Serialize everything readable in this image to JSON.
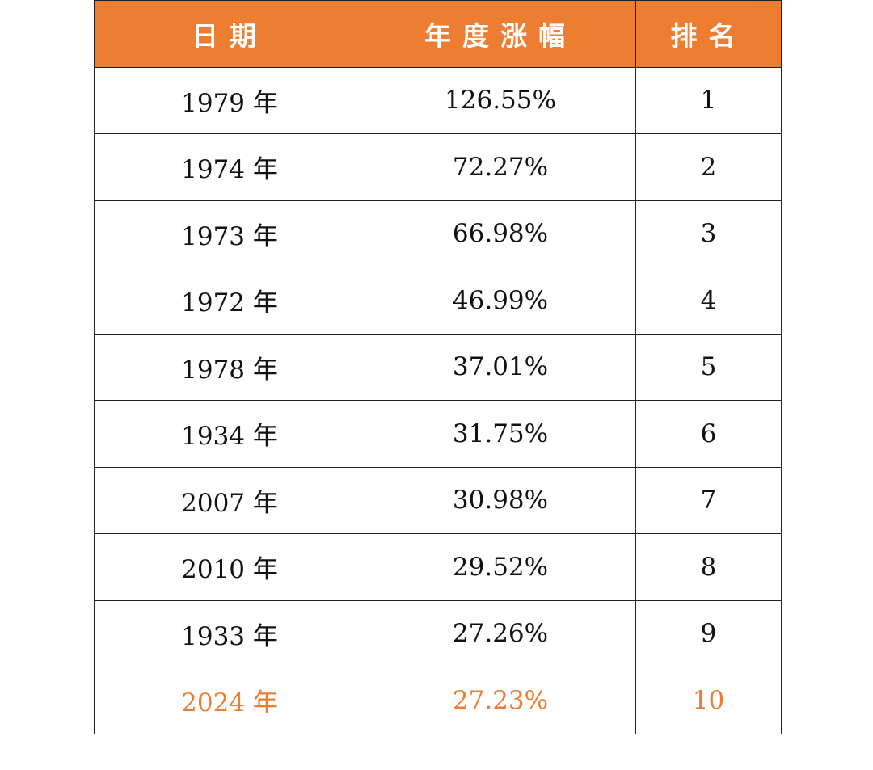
{
  "accent_color": "#ED7D31",
  "headers": [
    "日期",
    "年度涨幅",
    "排名"
  ],
  "rows": [
    {
      "date": "1979 年",
      "gain": "126.55%",
      "rank": "1"
    },
    {
      "date": "1974 年",
      "gain": "72.27%",
      "rank": "2"
    },
    {
      "date": "1973 年",
      "gain": "66.98%",
      "rank": "3"
    },
    {
      "date": "1972 年",
      "gain": "46.99%",
      "rank": "4"
    },
    {
      "date": "1978 年",
      "gain": "37.01%",
      "rank": "5"
    },
    {
      "date": "1934 年",
      "gain": "31.75%",
      "rank": "6"
    },
    {
      "date": "2007 年",
      "gain": "30.98%",
      "rank": "7"
    },
    {
      "date": "2010 年",
      "gain": "29.52%",
      "rank": "8"
    },
    {
      "date": "1933 年",
      "gain": "27.26%",
      "rank": "9"
    },
    {
      "date": "2024 年",
      "gain": "27.23%",
      "rank": "10",
      "highlighted": true
    }
  ]
}
